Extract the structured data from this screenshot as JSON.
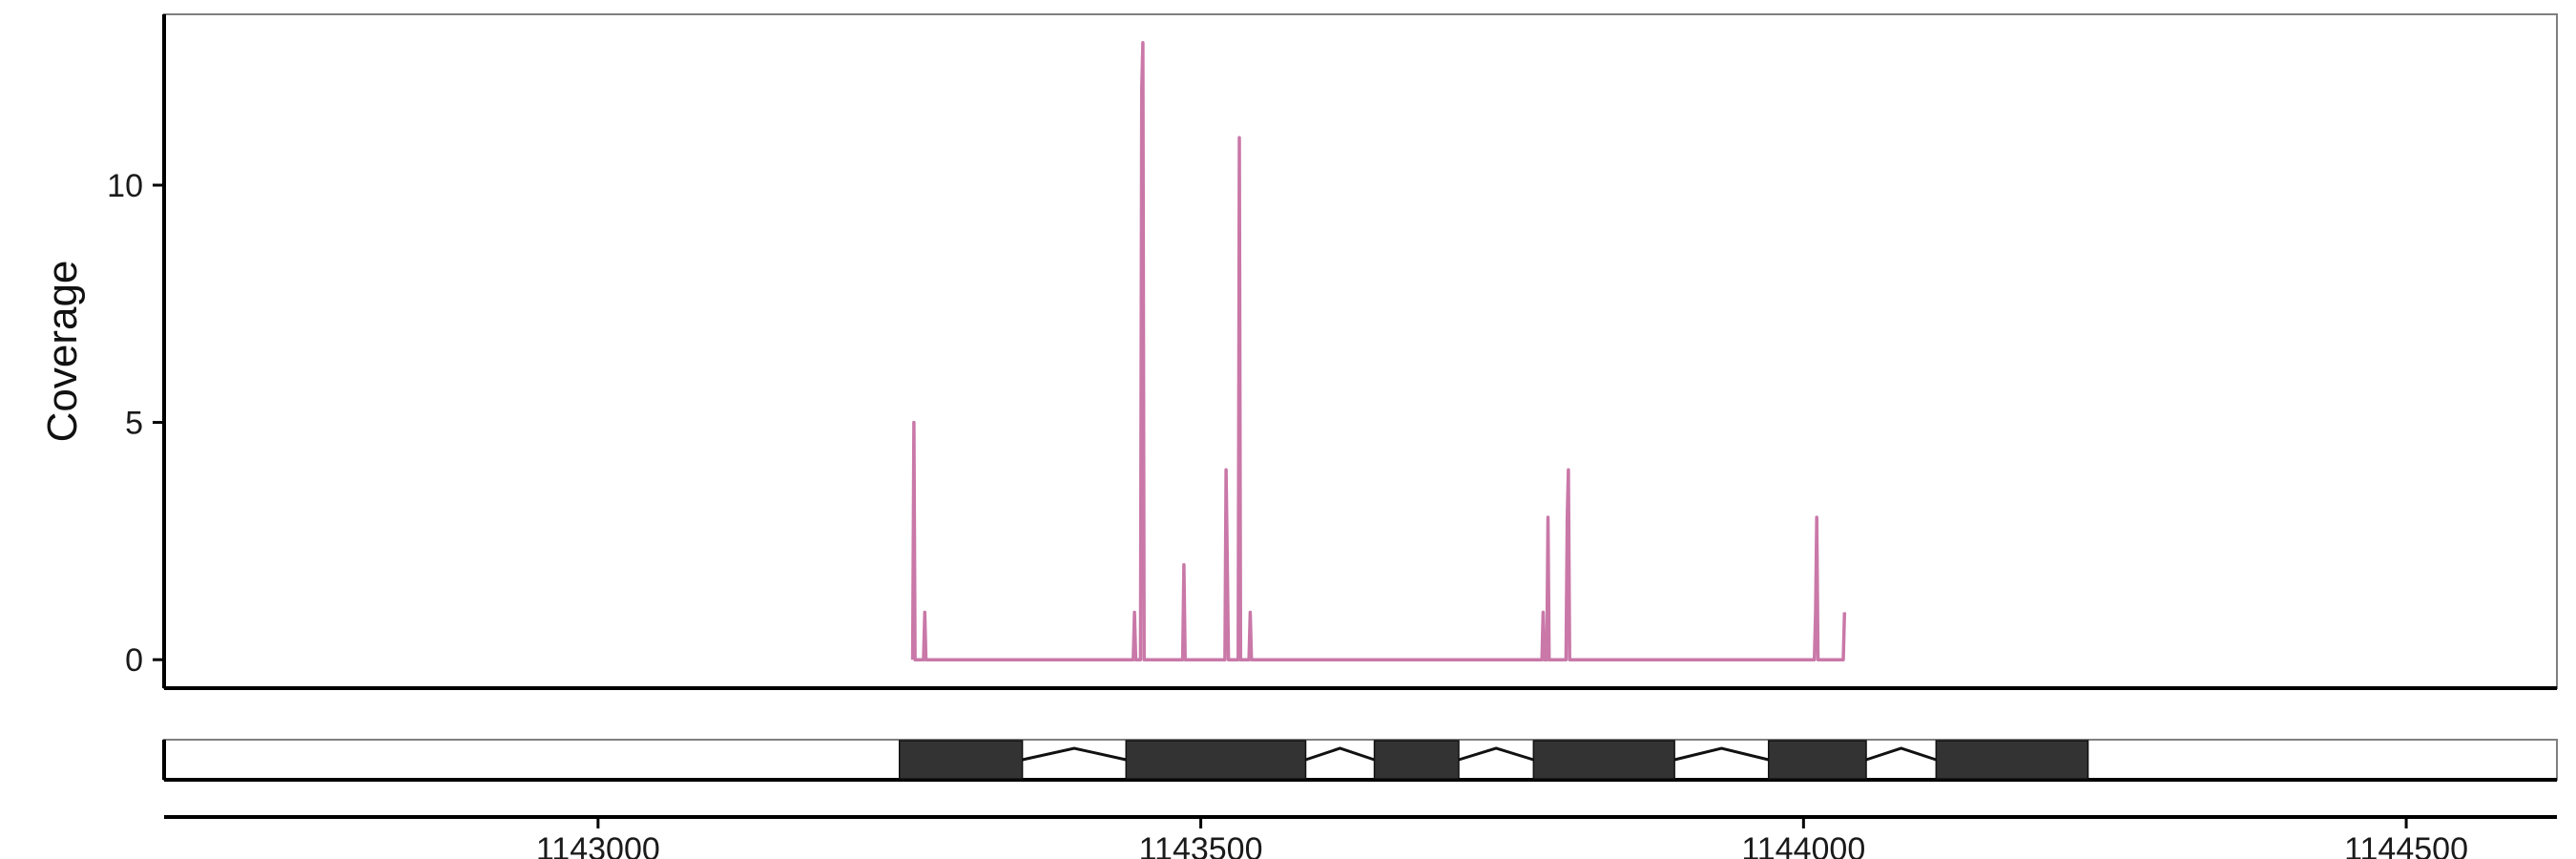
{
  "chart_data": {
    "type": "line",
    "ylabel": "Coverage",
    "xlabel": "",
    "xlim": [
      1142640,
      1144625
    ],
    "ylim": [
      -0.6,
      13.6
    ],
    "x_ticks": [
      1143000,
      1143500,
      1144000,
      1144500
    ],
    "x_tick_labels": [
      "1143000",
      "1143500",
      "1144000",
      "1144500"
    ],
    "y_ticks": [
      0,
      5,
      10
    ],
    "y_tick_labels": [
      "0",
      "5",
      "10"
    ],
    "grid": false,
    "legend": "none",
    "colors": {
      "coverage_line": "#C978A8",
      "exon_fill": "#333333",
      "track_border": "#808080",
      "axis": "#000000"
    },
    "series": [
      {
        "values_xy": [
          [
            1143261,
            0
          ],
          [
            1143262,
            5
          ],
          [
            1143263,
            0
          ],
          [
            1143270,
            0
          ],
          [
            1143271,
            1
          ],
          [
            1143272,
            0
          ],
          [
            1143444,
            0
          ],
          [
            1143445,
            1
          ],
          [
            1143446,
            0
          ],
          [
            1143450,
            0
          ],
          [
            1143451,
            12
          ],
          [
            1143452,
            13
          ],
          [
            1143453,
            0
          ],
          [
            1143485,
            0
          ],
          [
            1143486,
            2
          ],
          [
            1143487,
            0
          ],
          [
            1143520,
            0
          ],
          [
            1143521,
            4
          ],
          [
            1143522,
            2
          ],
          [
            1143523,
            0
          ],
          [
            1143531,
            0
          ],
          [
            1143532,
            11
          ],
          [
            1143533,
            0
          ],
          [
            1143540,
            0
          ],
          [
            1143541,
            1
          ],
          [
            1143542,
            0
          ],
          [
            1143783,
            0
          ],
          [
            1143784,
            1
          ],
          [
            1143785,
            0
          ],
          [
            1143787,
            0
          ],
          [
            1143788,
            3
          ],
          [
            1143789,
            0
          ],
          [
            1143803,
            0
          ],
          [
            1143804,
            3
          ],
          [
            1143805,
            4
          ],
          [
            1143806,
            0
          ],
          [
            1144009,
            0
          ],
          [
            1144010,
            1
          ],
          [
            1144011,
            3
          ],
          [
            1144012,
            0
          ],
          [
            1144033,
            0
          ],
          [
            1144034,
            1
          ]
        ]
      }
    ],
    "gene_track": {
      "exons": [
        [
          1143250,
          1143352
        ],
        [
          1143438,
          1143587
        ],
        [
          1143644,
          1143714
        ],
        [
          1143776,
          1143893
        ],
        [
          1143971,
          1144052
        ],
        [
          1144110,
          1144236
        ]
      ]
    }
  }
}
